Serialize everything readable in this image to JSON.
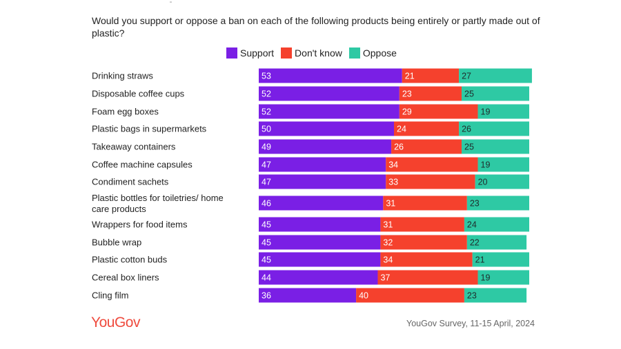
{
  "chart_data": {
    "type": "bar",
    "orientation": "horizontal",
    "stacked": true,
    "title": "Would you support or oppose a ban on each of the following products being entirely or partly made out of plastic?",
    "xlim": [
      0,
      100
    ],
    "legend_position": "top",
    "categories": [
      "Drinking straws",
      "Disposable coffee cups",
      "Foam egg boxes",
      "Plastic bags in supermarkets",
      "Takeaway containers",
      "Coffee machine capsules",
      "Condiment sachets",
      "Plastic bottles for toiletries/ home care products",
      "Wrappers for food items",
      "Bubble wrap",
      "Plastic cotton buds",
      "Cereal box liners",
      "Cling film"
    ],
    "series": [
      {
        "name": "Support",
        "color": "#7a1fe5",
        "values": [
          53,
          52,
          52,
          50,
          49,
          47,
          47,
          46,
          45,
          45,
          45,
          44,
          36
        ]
      },
      {
        "name": "Don't know",
        "color": "#f5412d",
        "values": [
          21,
          23,
          29,
          24,
          26,
          34,
          33,
          31,
          31,
          32,
          34,
          37,
          40
        ]
      },
      {
        "name": "Oppose",
        "color": "#2ec9a4",
        "values": [
          27,
          25,
          19,
          26,
          25,
          19,
          20,
          23,
          24,
          22,
          21,
          19,
          23
        ]
      }
    ]
  },
  "branding": {
    "logo_text": "YouGov"
  },
  "source": {
    "text": "YouGov Survey, 11-15 April, 2024"
  }
}
